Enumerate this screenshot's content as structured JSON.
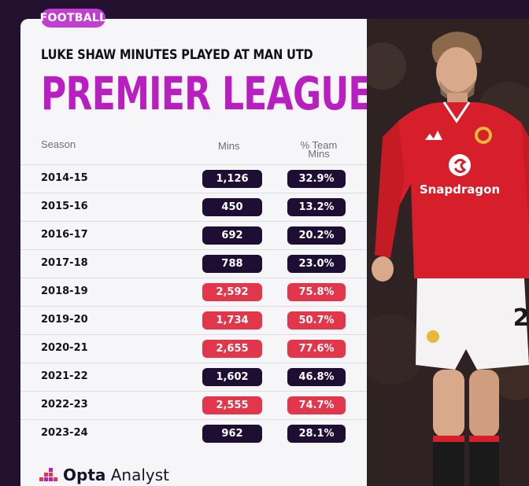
{
  "badge": "FOOTBALL",
  "subtitle": "LUKE SHAW MINUTES PLAYED AT MAN UTD",
  "title": "PREMIER LEAGUE",
  "headers": {
    "season": "Season",
    "mins": "Mins",
    "pct": "% Team Mins"
  },
  "colors": {
    "accent": "#b91fc0",
    "badge": "#c23ed0",
    "dark_pill": "#1e0e33",
    "red_pill": "#e2364a"
  },
  "chart_data": {
    "type": "table",
    "title": "PREMIER LEAGUE",
    "subtitle": "LUKE SHAW MINUTES PLAYED AT MAN UTD",
    "columns": [
      "Season",
      "Mins",
      "% Team Mins"
    ],
    "rows": [
      {
        "season": "2014-15",
        "mins": "1,126",
        "pct": "32.9%",
        "highlight": false
      },
      {
        "season": "2015-16",
        "mins": "450",
        "pct": "13.2%",
        "highlight": false
      },
      {
        "season": "2016-17",
        "mins": "692",
        "pct": "20.2%",
        "highlight": false
      },
      {
        "season": "2017-18",
        "mins": "788",
        "pct": "23.0%",
        "highlight": false
      },
      {
        "season": "2018-19",
        "mins": "2,592",
        "pct": "75.8%",
        "highlight": true
      },
      {
        "season": "2019-20",
        "mins": "1,734",
        "pct": "50.7%",
        "highlight": true
      },
      {
        "season": "2020-21",
        "mins": "2,655",
        "pct": "77.6%",
        "highlight": true
      },
      {
        "season": "2021-22",
        "mins": "1,602",
        "pct": "46.8%",
        "highlight": false
      },
      {
        "season": "2022-23",
        "mins": "2,555",
        "pct": "74.7%",
        "highlight": true
      },
      {
        "season": "2023-24",
        "mins": "962",
        "pct": "28.1%",
        "highlight": false
      }
    ]
  },
  "photo": {
    "sponsor": "Snapdragon",
    "shorts_number": "2"
  },
  "footer": {
    "brand_bold": "Opta",
    "brand_light": "Analyst"
  }
}
